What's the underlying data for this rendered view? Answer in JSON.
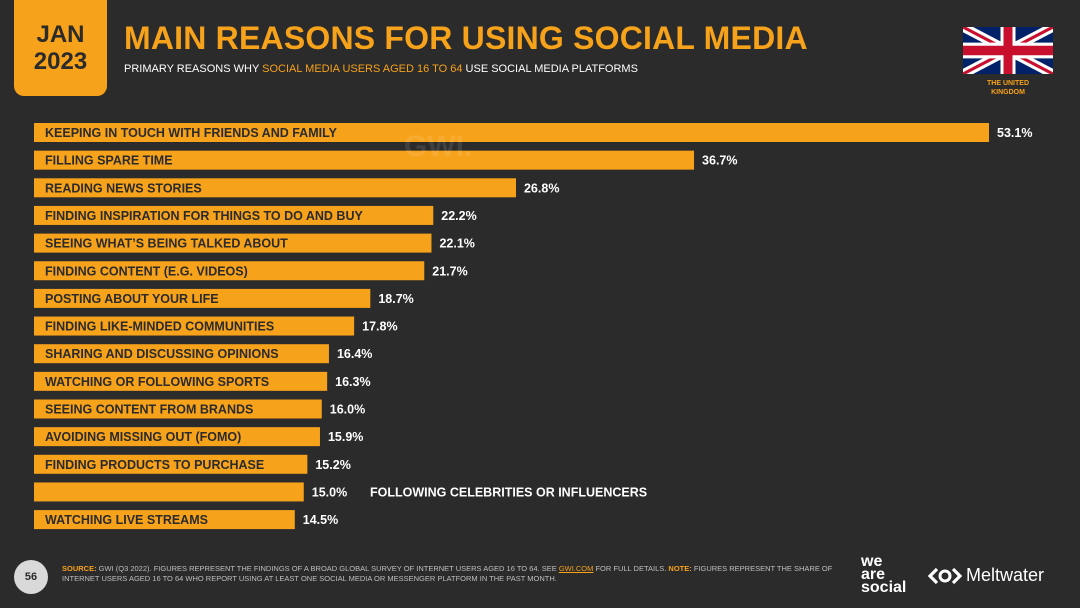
{
  "header": {
    "month": "JAN",
    "year": "2023",
    "title": "MAIN REASONS FOR USING SOCIAL MEDIA",
    "subtitle_pre": "PRIMARY REASONS WHY ",
    "subtitle_highlight": "SOCIAL MEDIA USERS AGED 16 TO 64",
    "subtitle_post": " USE SOCIAL MEDIA PLATFORMS",
    "country_line1": "THE UNITED",
    "country_line2": "KINGDOM",
    "watermark": "GWI."
  },
  "colors": {
    "accent": "#f7a21b",
    "background": "#2b2b2b",
    "text": "#ffffff"
  },
  "chart_data": {
    "type": "bar",
    "orientation": "horizontal",
    "categories": [
      "KEEPING IN TOUCH WITH FRIENDS AND FAMILY",
      "FILLING SPARE TIME",
      "READING NEWS STORIES",
      "FINDING INSPIRATION FOR THINGS TO DO AND BUY",
      "SEEING WHAT’S BEING TALKED ABOUT",
      "FINDING CONTENT (E.G. VIDEOS)",
      "POSTING ABOUT YOUR LIFE",
      "FINDING LIKE-MINDED COMMUNITIES",
      "SHARING AND DISCUSSING OPINIONS",
      "WATCHING OR FOLLOWING SPORTS",
      "SEEING CONTENT FROM BRANDS",
      "AVOIDING MISSING OUT (FOMO)",
      "FINDING PRODUCTS TO PURCHASE",
      "FOLLOWING CELEBRITIES OR INFLUENCERS",
      "WATCHING LIVE STREAMS"
    ],
    "values": [
      53.1,
      36.7,
      26.8,
      22.2,
      22.1,
      21.7,
      18.7,
      17.8,
      16.4,
      16.3,
      16.0,
      15.9,
      15.2,
      15.0,
      14.5
    ],
    "value_labels": [
      "53.1%",
      "36.7%",
      "26.8%",
      "22.2%",
      "22.1%",
      "21.7%",
      "18.7%",
      "17.8%",
      "16.4%",
      "16.3%",
      "16.0%",
      "15.9%",
      "15.2%",
      "15.0%",
      "14.5%"
    ],
    "label_outside": [
      false,
      false,
      false,
      false,
      false,
      false,
      false,
      false,
      false,
      false,
      false,
      false,
      false,
      true,
      false
    ],
    "unit": "%",
    "grid": false,
    "legend": "none"
  },
  "footer": {
    "page_number": "56",
    "source_key": "SOURCE:",
    "source_text": " GWI (Q3 2022). FIGURES REPRESENT THE FINDINGS OF A BROAD GLOBAL SURVEY OF INTERNET USERS AGED 16 TO 64. SEE ",
    "source_link": "GWI.COM",
    "source_after": " FOR FULL DETAILS. ",
    "note_key": "NOTE:",
    "note_text": " FIGURES REPRESENT THE SHARE OF INTERNET USERS AGED 16 TO 64 WHO REPORT USING AT LEAST ONE SOCIAL MEDIA OR MESSENGER PLATFORM IN THE PAST MONTH.",
    "logo_we": "we",
    "logo_are": "are",
    "logo_social": "social",
    "logo_meltwater": "Meltwater"
  }
}
